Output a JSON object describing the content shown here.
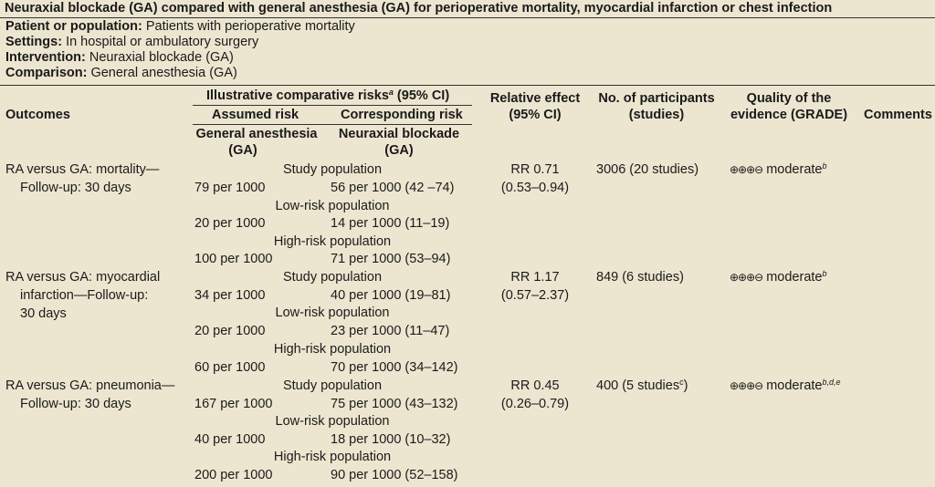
{
  "title": "Neuraxial blockade (GA) compared with general anesthesia (GA) for perioperative mortality, myocardial infarction or chest infection",
  "meta": [
    {
      "label": "Patient or population:",
      "value": "Patients with perioperative mortality"
    },
    {
      "label": "Settings:",
      "value": "In hospital or ambulatory surgery"
    },
    {
      "label": "Intervention:",
      "value": "Neuraxial blockade (GA)"
    },
    {
      "label": "Comparison:",
      "value": "General anesthesia (GA)"
    }
  ],
  "headers": {
    "outcomes": "Outcomes",
    "illustrative": "Illustrative comparative risks",
    "illustrative_sup": "a",
    "illustrative_ci": " (95% CI)",
    "assumed": "Assumed risk",
    "corresponding": "Corresponding risk",
    "assumed_sub1": "General anesthesia",
    "assumed_sub2": "(GA)",
    "corr_sub1": "Neuraxial blockade",
    "corr_sub2": "(GA)",
    "relative1": "Relative effect",
    "relative2": "(95% CI)",
    "participants1": "No. of participants",
    "participants2": "(studies)",
    "quality1": "Quality of the",
    "quality2": "evidence (GRADE)",
    "comments": "Comments"
  },
  "rows": [
    {
      "outcome": [
        "RA versus GA: mortality—",
        "Follow-up: 30 days"
      ],
      "groups": [
        {
          "label": "Study population",
          "assumed": "79 per 1000",
          "corresponding": "56 per 1000 (42 –74)"
        },
        {
          "label": "Low-risk population",
          "assumed": "20 per 1000",
          "corresponding": "14 per 1000 (11–19)"
        },
        {
          "label": "High-risk population",
          "assumed": "100 per 1000",
          "corresponding": "71 per 1000 (53–94)"
        }
      ],
      "rr": "RR 0.71",
      "rr_ci": "(0.53–0.94)",
      "participants": "3006 (20 studies)",
      "participants_sup": "",
      "grade_symbols": "⊕⊕⊕⊖",
      "quality": "moderate",
      "quality_sup": "b"
    },
    {
      "outcome": [
        "RA versus GA: myocardial",
        "infarction—Follow-up:",
        "30 days"
      ],
      "groups": [
        {
          "label": "Study population",
          "assumed": "34 per 1000",
          "corresponding": "40 per 1000 (19–81)"
        },
        {
          "label": "Low-risk population",
          "assumed": "20 per 1000",
          "corresponding": "23 per 1000 (11–47)"
        },
        {
          "label": "High-risk population",
          "assumed": "60 per 1000",
          "corresponding": "70 per 1000 (34–142)"
        }
      ],
      "rr": "RR 1.17",
      "rr_ci": "(0.57–2.37)",
      "participants": "849 (6 studies)",
      "participants_sup": "",
      "grade_symbols": "⊕⊕⊕⊖",
      "quality": "moderate",
      "quality_sup": "b"
    },
    {
      "outcome": [
        "RA versus GA: pneumonia—",
        "Follow-up: 30 days"
      ],
      "groups": [
        {
          "label": "Study population",
          "assumed": "167 per 1000",
          "corresponding": "75 per 1000 (43–132)"
        },
        {
          "label": "Low-risk population",
          "assumed": "40 per 1000",
          "corresponding": "18 per 1000 (10–32)"
        },
        {
          "label": "High-risk population",
          "assumed": "200 per 1000",
          "corresponding": "90 per 1000 (52–158)"
        }
      ],
      "rr": "RR 0.45",
      "rr_ci": "(0.26–0.79)",
      "participants": "400 (5 studies",
      "participants_sup": "c",
      "participants_close": ")",
      "grade_symbols": "⊕⊕⊕⊖",
      "quality": "moderate",
      "quality_sup": "b,d,e"
    }
  ]
}
